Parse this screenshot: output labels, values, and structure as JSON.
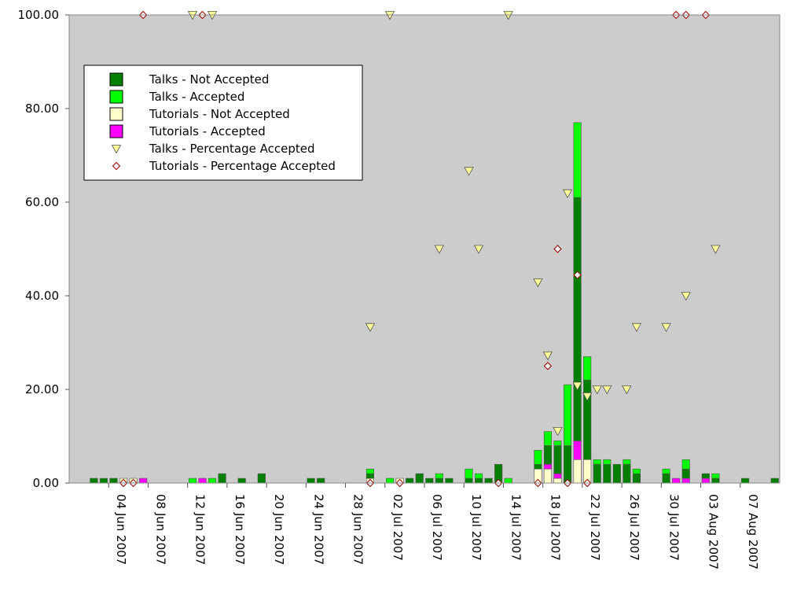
{
  "chart_data": {
    "type": "bar",
    "title": "",
    "xlabel": "",
    "ylabel": "",
    "ylim": [
      0,
      100
    ],
    "x_range": [
      "2007-05-31",
      "2007-08-10"
    ],
    "y_ticks": [
      "0.00",
      "20.00",
      "40.00",
      "60.00",
      "80.00",
      "100.00"
    ],
    "x_ticks": [
      {
        "date": "2007-06-04",
        "label": "04 Jun 2007"
      },
      {
        "date": "2007-06-08",
        "label": "08 Jun 2007"
      },
      {
        "date": "2007-06-12",
        "label": "12 Jun 2007"
      },
      {
        "date": "2007-06-16",
        "label": "16 Jun 2007"
      },
      {
        "date": "2007-06-20",
        "label": "20 Jun 2007"
      },
      {
        "date": "2007-06-24",
        "label": "24 Jun 2007"
      },
      {
        "date": "2007-06-28",
        "label": "28 Jun 2007"
      },
      {
        "date": "2007-07-02",
        "label": "02 Jul 2007"
      },
      {
        "date": "2007-07-06",
        "label": "06 Jul 2007"
      },
      {
        "date": "2007-07-10",
        "label": "10 Jul 2007"
      },
      {
        "date": "2007-07-14",
        "label": "14 Jul 2007"
      },
      {
        "date": "2007-07-18",
        "label": "18 Jul 2007"
      },
      {
        "date": "2007-07-22",
        "label": "22 Jul 2007"
      },
      {
        "date": "2007-07-26",
        "label": "26 Jul 2007"
      },
      {
        "date": "2007-07-30",
        "label": "30 Jul 2007"
      },
      {
        "date": "2007-08-03",
        "label": "03 Aug 2007"
      },
      {
        "date": "2007-08-07",
        "label": "07 Aug 2007"
      }
    ],
    "legend": {
      "position": "top-left"
    },
    "colors": {
      "talks_not_accepted": "#007f00",
      "talks_accepted": "#00ff00",
      "tutorials_not_accepted": "#ffffcc",
      "tutorials_accepted": "#ff00ff",
      "talks_pct_marker": "#ffff99",
      "tutorials_pct_marker": "#ffffff",
      "tutorials_pct_marker_stroke": "#990000",
      "plot_background": "#cccccc"
    },
    "bar_series": [
      {
        "name": "Talks - Not Accepted",
        "key": "talks_not_accepted",
        "legend_shape": "square"
      },
      {
        "name": "Talks - Accepted",
        "key": "talks_accepted",
        "legend_shape": "square"
      },
      {
        "name": "Tutorials - Not Accepted",
        "key": "tutorials_not_accepted",
        "legend_shape": "square"
      },
      {
        "name": "Tutorials - Accepted",
        "key": "tutorials_accepted",
        "legend_shape": "square"
      }
    ],
    "bars": [
      {
        "date": "2007-06-02",
        "talks_not_accepted": 1,
        "talks_accepted": 0,
        "tutorials_not_accepted": 0,
        "tutorials_accepted": 0
      },
      {
        "date": "2007-06-03",
        "talks_not_accepted": 1,
        "talks_accepted": 0,
        "tutorials_not_accepted": 0,
        "tutorials_accepted": 0
      },
      {
        "date": "2007-06-04",
        "talks_not_accepted": 1,
        "talks_accepted": 0,
        "tutorials_not_accepted": 0,
        "tutorials_accepted": 0
      },
      {
        "date": "2007-06-05",
        "talks_not_accepted": 0,
        "talks_accepted": 0,
        "tutorials_not_accepted": 1,
        "tutorials_accepted": 0
      },
      {
        "date": "2007-06-06",
        "talks_not_accepted": 0,
        "talks_accepted": 0,
        "tutorials_not_accepted": 1,
        "tutorials_accepted": 0
      },
      {
        "date": "2007-06-07",
        "talks_not_accepted": 0,
        "talks_accepted": 0,
        "tutorials_not_accepted": 0,
        "tutorials_accepted": 1
      },
      {
        "date": "2007-06-12",
        "talks_not_accepted": 0,
        "talks_accepted": 1,
        "tutorials_not_accepted": 0,
        "tutorials_accepted": 0
      },
      {
        "date": "2007-06-13",
        "talks_not_accepted": 0,
        "talks_accepted": 0,
        "tutorials_not_accepted": 0,
        "tutorials_accepted": 1
      },
      {
        "date": "2007-06-14",
        "talks_not_accepted": 0,
        "talks_accepted": 1,
        "tutorials_not_accepted": 0,
        "tutorials_accepted": 0
      },
      {
        "date": "2007-06-15",
        "talks_not_accepted": 2,
        "talks_accepted": 0,
        "tutorials_not_accepted": 0,
        "tutorials_accepted": 0
      },
      {
        "date": "2007-06-17",
        "talks_not_accepted": 1,
        "talks_accepted": 0,
        "tutorials_not_accepted": 0,
        "tutorials_accepted": 0
      },
      {
        "date": "2007-06-19",
        "talks_not_accepted": 2,
        "talks_accepted": 0,
        "tutorials_not_accepted": 0,
        "tutorials_accepted": 0
      },
      {
        "date": "2007-06-24",
        "talks_not_accepted": 1,
        "talks_accepted": 0,
        "tutorials_not_accepted": 0,
        "tutorials_accepted": 0
      },
      {
        "date": "2007-06-25",
        "talks_not_accepted": 1,
        "talks_accepted": 0,
        "tutorials_not_accepted": 0,
        "tutorials_accepted": 0
      },
      {
        "date": "2007-06-30",
        "talks_not_accepted": 1,
        "talks_accepted": 1,
        "tutorials_not_accepted": 1,
        "tutorials_accepted": 0
      },
      {
        "date": "2007-07-02",
        "talks_not_accepted": 0,
        "talks_accepted": 1,
        "tutorials_not_accepted": 0,
        "tutorials_accepted": 0
      },
      {
        "date": "2007-07-03",
        "talks_not_accepted": 0,
        "talks_accepted": 0,
        "tutorials_not_accepted": 1,
        "tutorials_accepted": 0
      },
      {
        "date": "2007-07-04",
        "talks_not_accepted": 1,
        "talks_accepted": 0,
        "tutorials_not_accepted": 0,
        "tutorials_accepted": 0
      },
      {
        "date": "2007-07-05",
        "talks_not_accepted": 2,
        "talks_accepted": 0,
        "tutorials_not_accepted": 0,
        "tutorials_accepted": 0
      },
      {
        "date": "2007-07-06",
        "talks_not_accepted": 1,
        "talks_accepted": 0,
        "tutorials_not_accepted": 0,
        "tutorials_accepted": 0
      },
      {
        "date": "2007-07-07",
        "talks_not_accepted": 1,
        "talks_accepted": 1,
        "tutorials_not_accepted": 0,
        "tutorials_accepted": 0
      },
      {
        "date": "2007-07-08",
        "talks_not_accepted": 1,
        "talks_accepted": 0,
        "tutorials_not_accepted": 0,
        "tutorials_accepted": 0
      },
      {
        "date": "2007-07-10",
        "talks_not_accepted": 1,
        "talks_accepted": 2,
        "tutorials_not_accepted": 0,
        "tutorials_accepted": 0
      },
      {
        "date": "2007-07-11",
        "talks_not_accepted": 1,
        "talks_accepted": 1,
        "tutorials_not_accepted": 0,
        "tutorials_accepted": 0
      },
      {
        "date": "2007-07-12",
        "talks_not_accepted": 1,
        "talks_accepted": 0,
        "tutorials_not_accepted": 0,
        "tutorials_accepted": 0
      },
      {
        "date": "2007-07-13",
        "talks_not_accepted": 4,
        "talks_accepted": 0,
        "tutorials_not_accepted": 0,
        "tutorials_accepted": 0
      },
      {
        "date": "2007-07-14",
        "talks_not_accepted": 0,
        "talks_accepted": 1,
        "tutorials_not_accepted": 0,
        "tutorials_accepted": 0
      },
      {
        "date": "2007-07-17",
        "talks_not_accepted": 1,
        "talks_accepted": 3,
        "tutorials_not_accepted": 3,
        "tutorials_accepted": 0
      },
      {
        "date": "2007-07-18",
        "talks_not_accepted": 4,
        "talks_accepted": 3,
        "tutorials_not_accepted": 3,
        "tutorials_accepted": 1
      },
      {
        "date": "2007-07-19",
        "talks_not_accepted": 6,
        "talks_accepted": 1,
        "tutorials_not_accepted": 1,
        "tutorials_accepted": 1
      },
      {
        "date": "2007-07-20",
        "talks_not_accepted": 8,
        "talks_accepted": 13,
        "tutorials_not_accepted": 0,
        "tutorials_accepted": 0
      },
      {
        "date": "2007-07-21",
        "talks_not_accepted": 52,
        "talks_accepted": 16,
        "tutorials_not_accepted": 5,
        "tutorials_accepted": 4
      },
      {
        "date": "2007-07-22",
        "talks_not_accepted": 17,
        "talks_accepted": 5,
        "tutorials_not_accepted": 5,
        "tutorials_accepted": 0
      },
      {
        "date": "2007-07-23",
        "talks_not_accepted": 4,
        "talks_accepted": 1,
        "tutorials_not_accepted": 0,
        "tutorials_accepted": 0
      },
      {
        "date": "2007-07-24",
        "talks_not_accepted": 4,
        "talks_accepted": 1,
        "tutorials_not_accepted": 0,
        "tutorials_accepted": 0
      },
      {
        "date": "2007-07-25",
        "talks_not_accepted": 4,
        "talks_accepted": 0,
        "tutorials_not_accepted": 0,
        "tutorials_accepted": 0
      },
      {
        "date": "2007-07-26",
        "talks_not_accepted": 4,
        "talks_accepted": 1,
        "tutorials_not_accepted": 0,
        "tutorials_accepted": 0
      },
      {
        "date": "2007-07-27",
        "talks_not_accepted": 2,
        "talks_accepted": 1,
        "tutorials_not_accepted": 0,
        "tutorials_accepted": 0
      },
      {
        "date": "2007-07-30",
        "talks_not_accepted": 2,
        "talks_accepted": 1,
        "tutorials_not_accepted": 0,
        "tutorials_accepted": 0
      },
      {
        "date": "2007-07-31",
        "talks_not_accepted": 0,
        "talks_accepted": 0,
        "tutorials_not_accepted": 0,
        "tutorials_accepted": 1
      },
      {
        "date": "2007-08-01",
        "talks_not_accepted": 2,
        "talks_accepted": 2,
        "tutorials_not_accepted": 0,
        "tutorials_accepted": 1
      },
      {
        "date": "2007-08-03",
        "talks_not_accepted": 1,
        "talks_accepted": 0,
        "tutorials_not_accepted": 0,
        "tutorials_accepted": 1
      },
      {
        "date": "2007-08-04",
        "talks_not_accepted": 1,
        "talks_accepted": 1,
        "tutorials_not_accepted": 0,
        "tutorials_accepted": 0
      },
      {
        "date": "2007-08-07",
        "talks_not_accepted": 1,
        "talks_accepted": 0,
        "tutorials_not_accepted": 0,
        "tutorials_accepted": 0
      },
      {
        "date": "2007-08-10",
        "talks_not_accepted": 1,
        "talks_accepted": 0,
        "tutorials_not_accepted": 0,
        "tutorials_accepted": 0
      }
    ],
    "scatter_series": [
      {
        "name": "Talks - Percentage Accepted",
        "key": "talks_pct",
        "marker": "triangle-down",
        "points": [
          {
            "date": "2007-06-12",
            "value": 100.0
          },
          {
            "date": "2007-06-14",
            "value": 100.0
          },
          {
            "date": "2007-06-30",
            "value": 33.33
          },
          {
            "date": "2007-07-02",
            "value": 100.0
          },
          {
            "date": "2007-07-07",
            "value": 50.0
          },
          {
            "date": "2007-07-10",
            "value": 66.67
          },
          {
            "date": "2007-07-11",
            "value": 50.0
          },
          {
            "date": "2007-07-14",
            "value": 100.0
          },
          {
            "date": "2007-07-17",
            "value": 42.86
          },
          {
            "date": "2007-07-18",
            "value": 27.27
          },
          {
            "date": "2007-07-19",
            "value": 11.11
          },
          {
            "date": "2007-07-20",
            "value": 61.9
          },
          {
            "date": "2007-07-21",
            "value": 20.78
          },
          {
            "date": "2007-07-22",
            "value": 18.52
          },
          {
            "date": "2007-07-23",
            "value": 20.0
          },
          {
            "date": "2007-07-24",
            "value": 20.0
          },
          {
            "date": "2007-07-26",
            "value": 20.0
          },
          {
            "date": "2007-07-27",
            "value": 33.33
          },
          {
            "date": "2007-07-30",
            "value": 33.33
          },
          {
            "date": "2007-08-01",
            "value": 40.0
          },
          {
            "date": "2007-08-04",
            "value": 50.0
          }
        ]
      },
      {
        "name": "Tutorials - Percentage Accepted",
        "key": "tutorials_pct",
        "marker": "diamond",
        "points": [
          {
            "date": "2007-06-05",
            "value": 0.0
          },
          {
            "date": "2007-06-06",
            "value": 0.0
          },
          {
            "date": "2007-06-07",
            "value": 100.0
          },
          {
            "date": "2007-06-13",
            "value": 100.0
          },
          {
            "date": "2007-06-30",
            "value": 0.0
          },
          {
            "date": "2007-07-03",
            "value": 0.0
          },
          {
            "date": "2007-07-13",
            "value": 0.0
          },
          {
            "date": "2007-07-17",
            "value": 0.0
          },
          {
            "date": "2007-07-18",
            "value": 25.0
          },
          {
            "date": "2007-07-19",
            "value": 50.0
          },
          {
            "date": "2007-07-20",
            "value": 0.0
          },
          {
            "date": "2007-07-21",
            "value": 44.44
          },
          {
            "date": "2007-07-22",
            "value": 0.0
          },
          {
            "date": "2007-07-31",
            "value": 100.0
          },
          {
            "date": "2007-08-01",
            "value": 100.0
          },
          {
            "date": "2007-08-03",
            "value": 100.0
          }
        ]
      }
    ]
  }
}
